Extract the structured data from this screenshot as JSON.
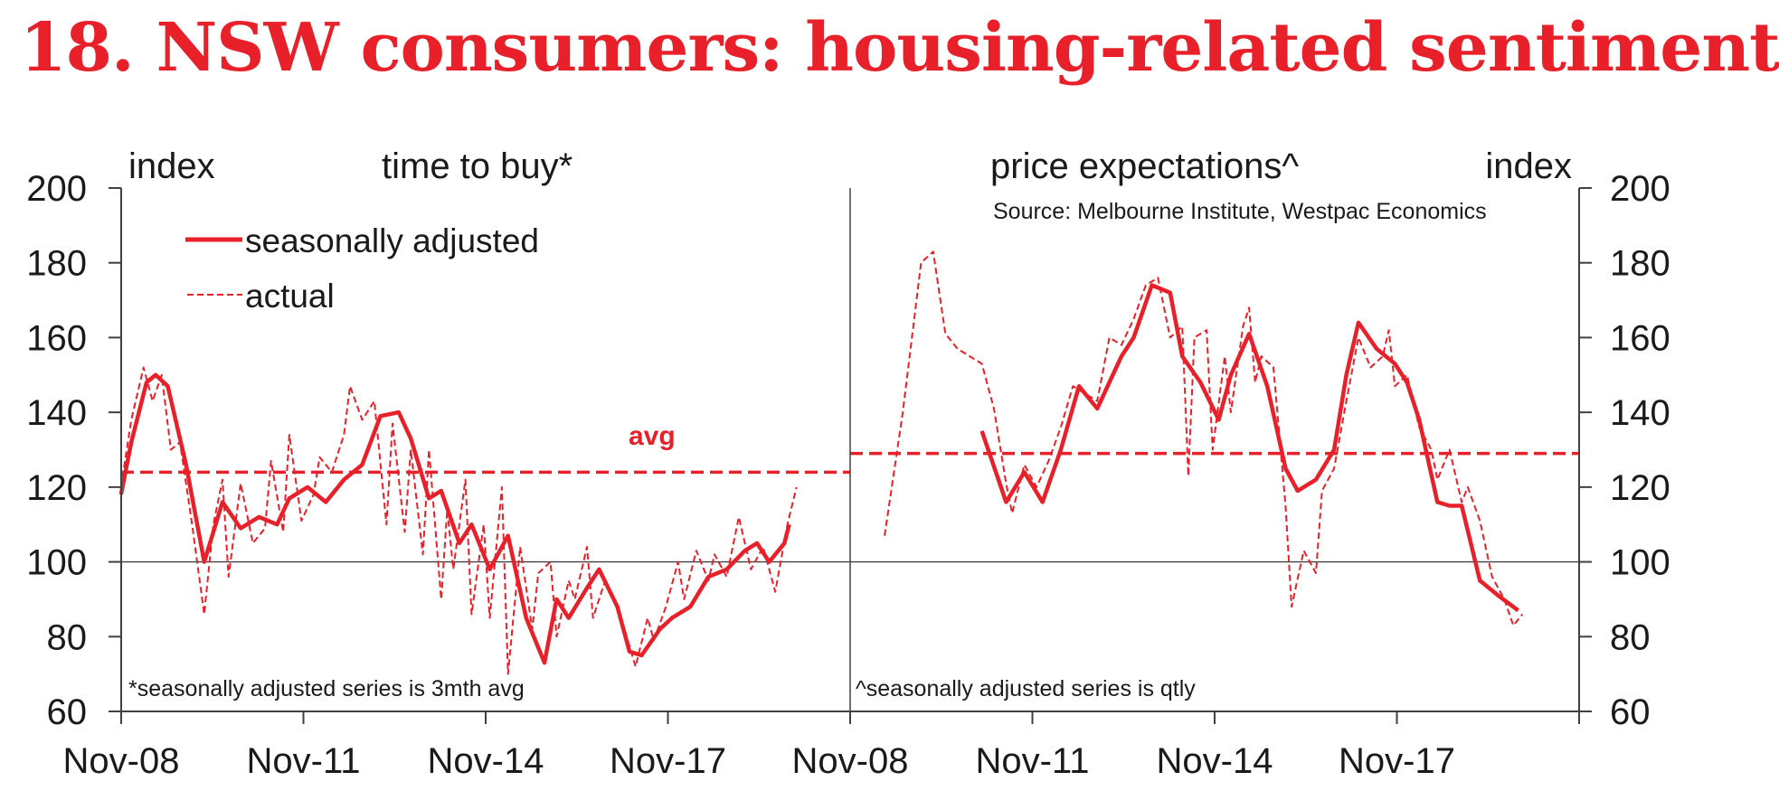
{
  "title": "18. NSW consumers: housing-related sentiment",
  "colors": {
    "title": "#e8202a",
    "series": "#e8202a",
    "axis": "#404040",
    "text": "#1a1a1a"
  },
  "chart_data": [
    {
      "type": "line",
      "panel_title": "time to buy*",
      "ylabel": "index",
      "ylim": [
        60,
        200
      ],
      "yticks": [
        60,
        80,
        100,
        120,
        140,
        160,
        180,
        200
      ],
      "xticks": [
        "Nov-08",
        "Nov-11",
        "Nov-14",
        "Nov-17"
      ],
      "xlim": [
        2008.833,
        2020.833
      ],
      "reference_line": 100,
      "avg": {
        "label": "avg",
        "value": 124
      },
      "legend": [
        "seasonally adjusted",
        "actual"
      ],
      "footnote": "*seasonally adjusted series is 3mth avg",
      "series": [
        {
          "name": "seasonally adjusted",
          "style": "solid",
          "x": [
            2008.83,
            2009.0,
            2009.25,
            2009.4,
            2009.6,
            2009.9,
            2010.2,
            2010.5,
            2010.8,
            2011.1,
            2011.4,
            2011.6,
            2011.9,
            2012.2,
            2012.5,
            2012.8,
            2013.1,
            2013.4,
            2013.6,
            2013.9,
            2014.1,
            2014.4,
            2014.6,
            2014.9,
            2015.2,
            2015.5,
            2015.8,
            2016.0,
            2016.2,
            2016.5,
            2016.7,
            2017.0,
            2017.2,
            2017.4,
            2017.7,
            2017.9,
            2018.2,
            2018.5,
            2018.8,
            2019.1,
            2019.3,
            2019.5,
            2019.75,
            2019.83
          ],
          "values": [
            118,
            132,
            148,
            150,
            147,
            126,
            100,
            116,
            109,
            112,
            110,
            117,
            120,
            116,
            122,
            126,
            139,
            140,
            133,
            117,
            119,
            105,
            110,
            98,
            107,
            85,
            73,
            90,
            85,
            93,
            98,
            88,
            76,
            75,
            82,
            85,
            88,
            96,
            98,
            103,
            105,
            100,
            105,
            110
          ]
        },
        {
          "name": "actual",
          "style": "dashed",
          "x": [
            2008.83,
            2009.0,
            2009.2,
            2009.35,
            2009.5,
            2009.65,
            2009.8,
            2010.0,
            2010.2,
            2010.35,
            2010.5,
            2010.6,
            2010.8,
            2011.0,
            2011.2,
            2011.3,
            2011.5,
            2011.6,
            2011.8,
            2012.0,
            2012.1,
            2012.3,
            2012.5,
            2012.6,
            2012.8,
            2013.0,
            2013.2,
            2013.3,
            2013.5,
            2013.6,
            2013.8,
            2013.9,
            2014.1,
            2014.2,
            2014.3,
            2014.5,
            2014.6,
            2014.8,
            2014.9,
            2015.1,
            2015.2,
            2015.4,
            2015.6,
            2015.7,
            2015.9,
            2016.0,
            2016.2,
            2016.3,
            2016.5,
            2016.6,
            2016.8,
            2017.0,
            2017.1,
            2017.3,
            2017.5,
            2017.6,
            2017.8,
            2018.0,
            2018.1,
            2018.3,
            2018.5,
            2018.6,
            2018.8,
            2019.0,
            2019.2,
            2019.4,
            2019.6,
            2019.8,
            2019.95
          ],
          "values": [
            120,
            138,
            152,
            143,
            150,
            130,
            132,
            110,
            86,
            110,
            122,
            96,
            121,
            105,
            109,
            127,
            108,
            134,
            111,
            118,
            128,
            124,
            134,
            147,
            138,
            143,
            110,
            137,
            108,
            130,
            102,
            130,
            90,
            114,
            98,
            122,
            86,
            110,
            85,
            120,
            70,
            104,
            82,
            97,
            100,
            80,
            95,
            90,
            104,
            85,
            95,
            88,
            83,
            72,
            85,
            79,
            88,
            100,
            90,
            103,
            95,
            102,
            96,
            112,
            98,
            104,
            92,
            110,
            120
          ]
        }
      ]
    },
    {
      "type": "line",
      "panel_title": "price expectations^",
      "ylabel": "index",
      "ylim": [
        60,
        200
      ],
      "yticks": [
        60,
        80,
        100,
        120,
        140,
        160,
        180,
        200
      ],
      "xticks": [
        "Nov-08",
        "Nov-11",
        "Nov-14",
        "Nov-17"
      ],
      "xlim": [
        2008.833,
        2020.833
      ],
      "reference_line": 100,
      "avg": {
        "value": 129
      },
      "source": "Source: Melbourne Institute, Westpac Economics",
      "footnote": "^seasonally adjusted series is qtly",
      "series": [
        {
          "name": "seasonally adjusted",
          "style": "solid",
          "x": [
            2011.0,
            2011.4,
            2011.7,
            2012.0,
            2012.3,
            2012.6,
            2012.9,
            2013.3,
            2013.5,
            2013.8,
            2014.1,
            2014.3,
            2014.6,
            2014.9,
            2015.1,
            2015.4,
            2015.7,
            2016.0,
            2016.2,
            2016.5,
            2016.8,
            2017.0,
            2017.2,
            2017.5,
            2017.8,
            2018.0,
            2018.2,
            2018.5,
            2018.7,
            2018.9,
            2019.2,
            2019.5,
            2019.83
          ],
          "values": [
            135,
            116,
            124,
            116,
            130,
            147,
            141,
            155,
            160,
            174,
            172,
            155,
            148,
            138,
            150,
            161,
            147,
            125,
            119,
            122,
            130,
            150,
            164,
            157,
            153,
            148,
            138,
            116,
            115,
            115,
            95,
            91,
            87
          ]
        },
        {
          "name": "actual",
          "style": "dashed",
          "x": [
            2009.4,
            2009.7,
            2010.0,
            2010.2,
            2010.4,
            2010.6,
            2011.0,
            2011.2,
            2011.4,
            2011.5,
            2011.7,
            2011.9,
            2012.1,
            2012.3,
            2012.5,
            2012.7,
            2012.9,
            2013.1,
            2013.3,
            2013.5,
            2013.7,
            2013.9,
            2014.1,
            2014.3,
            2014.4,
            2014.5,
            2014.7,
            2014.8,
            2015.0,
            2015.1,
            2015.3,
            2015.4,
            2015.5,
            2015.6,
            2015.8,
            2016.0,
            2016.1,
            2016.3,
            2016.5,
            2016.6,
            2016.8,
            2017.0,
            2017.2,
            2017.4,
            2017.6,
            2017.7,
            2017.8,
            2018.0,
            2018.2,
            2018.4,
            2018.5,
            2018.7,
            2018.9,
            2019.0,
            2019.2,
            2019.4,
            2019.6,
            2019.75,
            2019.9
          ],
          "values": [
            107,
            140,
            180,
            183,
            161,
            157,
            153,
            141,
            121,
            113,
            126,
            120,
            127,
            136,
            147,
            145,
            143,
            160,
            158,
            165,
            174,
            176,
            160,
            163,
            123,
            160,
            162,
            130,
            155,
            140,
            163,
            168,
            148,
            155,
            152,
            115,
            88,
            103,
            97,
            119,
            125,
            143,
            160,
            152,
            155,
            162,
            147,
            150,
            136,
            130,
            122,
            130,
            116,
            120,
            111,
            96,
            90,
            83,
            86
          ]
        }
      ]
    }
  ]
}
